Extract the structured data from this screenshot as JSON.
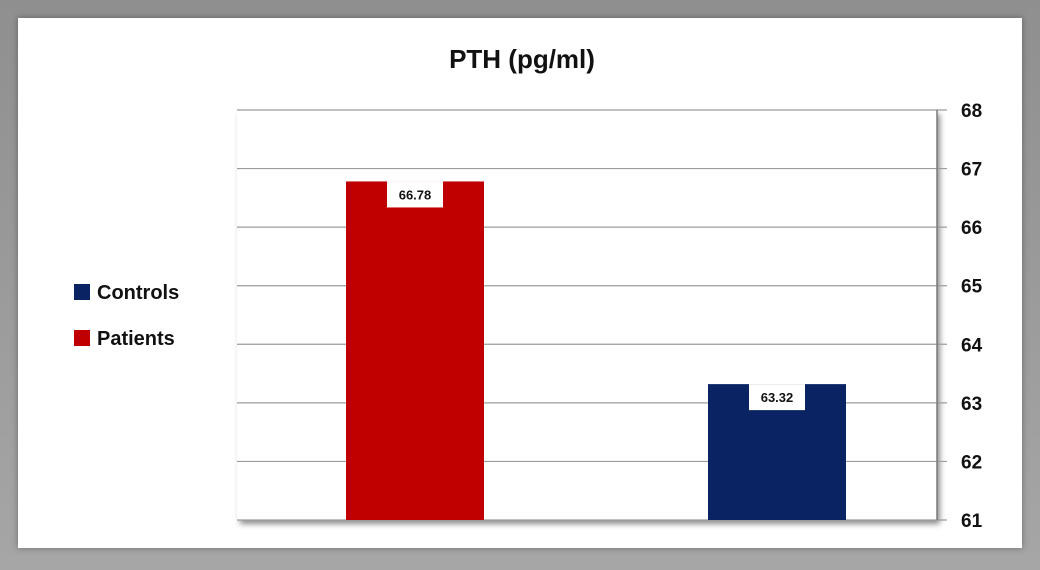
{
  "chart_data": {
    "type": "bar",
    "title": "PTH (pg/ml)",
    "categories": [
      "Patients",
      "Controls"
    ],
    "values": [
      66.78,
      63.32
    ],
    "data_labels": [
      "66.78",
      "63.32"
    ],
    "colors": [
      "#c00000",
      "#0a2463"
    ],
    "ylim": [
      61,
      68
    ],
    "yticks": [
      "61",
      "62",
      "63",
      "64",
      "65",
      "66",
      "67",
      "68"
    ],
    "y_axis_side": "right",
    "grid": true,
    "legend_position": "left",
    "legend": [
      {
        "name": "Controls",
        "color": "#0a2463"
      },
      {
        "name": "Patients",
        "color": "#c00000"
      }
    ]
  }
}
